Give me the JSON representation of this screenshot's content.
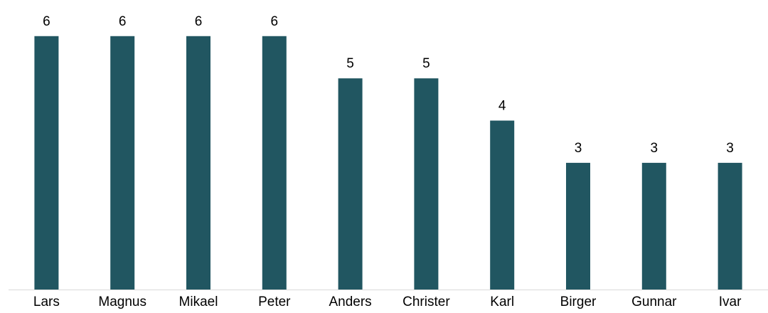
{
  "chart_data": {
    "type": "bar",
    "categories": [
      "Lars",
      "Magnus",
      "Mikael",
      "Peter",
      "Anders",
      "Christer",
      "Karl",
      "Birger",
      "Gunnar",
      "Ivar"
    ],
    "values": [
      6,
      6,
      6,
      6,
      5,
      5,
      4,
      3,
      3,
      3
    ],
    "data_labels": [
      "6",
      "6",
      "6",
      "6",
      "5",
      "5",
      "4",
      "3",
      "3",
      "3"
    ],
    "ylim": [
      0,
      6.35
    ],
    "bar_color": "#215661",
    "axis_color": "#d9d9d9",
    "grid": false,
    "legend": "none"
  }
}
